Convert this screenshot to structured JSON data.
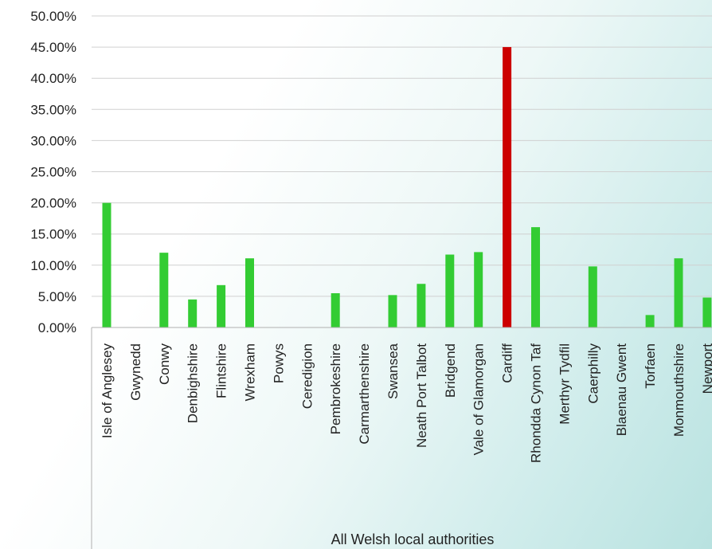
{
  "chart_data": {
    "type": "bar",
    "title": "",
    "xlabel": "All Welsh local authorities",
    "ylabel": "",
    "ylim": [
      0,
      0.5
    ],
    "yticks": [
      "0.00%",
      "5.00%",
      "10.00%",
      "15.00%",
      "20.00%",
      "25.00%",
      "30.00%",
      "35.00%",
      "40.00%",
      "45.00%",
      "50.00%"
    ],
    "grid": true,
    "legend": "none",
    "categories": [
      "Isle of Anglesey",
      "Gwynedd",
      "Conwy",
      "Denbighshire",
      "Flintshire",
      "Wrexham",
      "Powys",
      "Ceredigion",
      "Pembrokeshire",
      "Carmarthenshire",
      "Swansea",
      "Neath Port Talbot",
      "Bridgend",
      "Vale of Glamorgan",
      "Cardiff",
      "Rhondda Cynon Taf",
      "Merthyr Tydfil",
      "Caerphilly",
      "Blaenau Gwent",
      "Torfaen",
      "Monmouthshire",
      "Newport"
    ],
    "values": [
      0.2,
      0.0,
      0.12,
      0.045,
      0.068,
      0.111,
      0.0,
      0.0,
      0.055,
      0.0,
      0.052,
      0.07,
      0.117,
      0.121,
      0.45,
      0.161,
      0.0,
      0.098,
      0.0,
      0.02,
      0.111,
      0.048
    ],
    "highlight_category": "Cardiff",
    "colors": {
      "bar": "#33cc33",
      "highlight": "#cc0000",
      "grid": "#d0d0d0",
      "axis": "#b0b0b0"
    }
  }
}
